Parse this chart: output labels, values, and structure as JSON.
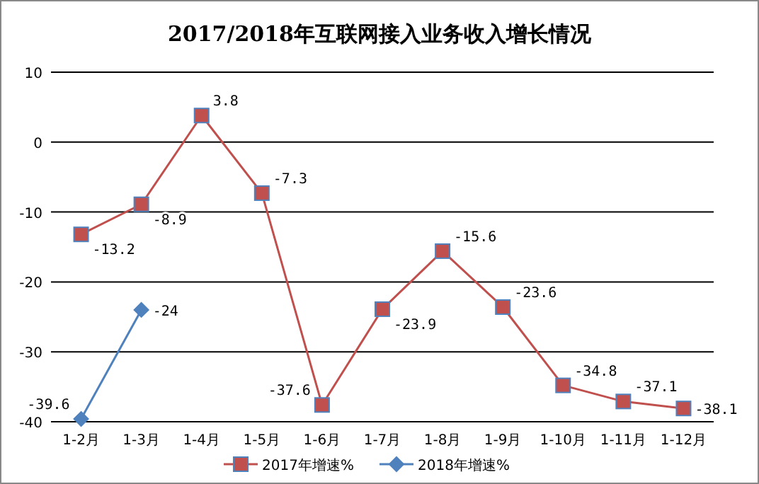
{
  "chart_data": {
    "type": "line",
    "title": "2017/2018年互联网接入业务收入增长情况",
    "categories": [
      "1-2月",
      "1-3月",
      "1-4月",
      "1-5月",
      "1-6月",
      "1-7月",
      "1-8月",
      "1-9月",
      "1-10月",
      "1-11月",
      "1-12月"
    ],
    "series": [
      {
        "name": "2017年增速%",
        "color": "#c0504d",
        "marker": "square",
        "values": [
          -13.2,
          -8.9,
          3.8,
          -7.3,
          -37.6,
          -23.9,
          -15.6,
          -23.6,
          -34.8,
          -37.1,
          -38.1
        ]
      },
      {
        "name": "2018年增速%",
        "color": "#4f81bd",
        "marker": "diamond",
        "values": [
          -39.6,
          -24,
          null,
          null,
          null,
          null,
          null,
          null,
          null,
          null,
          null
        ]
      }
    ],
    "ylim": [
      -40,
      10
    ],
    "yticks": [
      -40,
      -30,
      -20,
      -10,
      0,
      10
    ],
    "grid": "y",
    "legend": "bottom",
    "data_labels": true
  }
}
